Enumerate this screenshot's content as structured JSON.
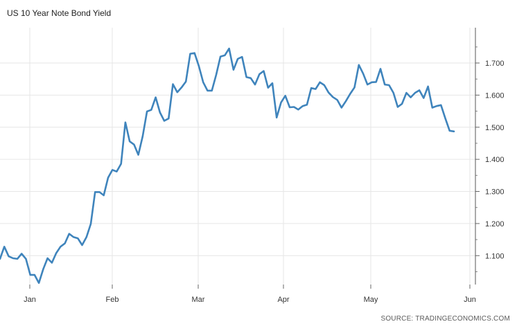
{
  "chart_data": {
    "type": "line",
    "title": "US 10 Year Note Bond Yield",
    "source": "SOURCE: TRADINGECONOMICS.COM",
    "x_tick_labels": [
      "Jan",
      "Feb",
      "Mar",
      "Apr",
      "May",
      "Jun"
    ],
    "y_tick_labels": [
      "1.100",
      "1.200",
      "1.300",
      "1.400",
      "1.500",
      "1.600",
      "1.700"
    ],
    "ylim": [
      1.01,
      1.81
    ],
    "y_axis_side": "right",
    "grid": true,
    "line_color": "#3f84bc",
    "series": [
      {
        "values": [
          1.09,
          1.128,
          1.098,
          1.092,
          1.09,
          1.106,
          1.09,
          1.04,
          1.04,
          1.015,
          1.058,
          1.092,
          1.078,
          1.108,
          1.128,
          1.138,
          1.168,
          1.158,
          1.154,
          1.133,
          1.158,
          1.199,
          1.298,
          1.298,
          1.288,
          1.343,
          1.367,
          1.362,
          1.386,
          1.515,
          1.456,
          1.446,
          1.414,
          1.472,
          1.549,
          1.554,
          1.593,
          1.546,
          1.52,
          1.527,
          1.634,
          1.609,
          1.624,
          1.642,
          1.729,
          1.731,
          1.69,
          1.64,
          1.614,
          1.614,
          1.663,
          1.72,
          1.724,
          1.745,
          1.679,
          1.713,
          1.719,
          1.656,
          1.653,
          1.633,
          1.665,
          1.675,
          1.623,
          1.637,
          1.53,
          1.577,
          1.598,
          1.562,
          1.563,
          1.555,
          1.566,
          1.57,
          1.622,
          1.619,
          1.64,
          1.631,
          1.608,
          1.594,
          1.585,
          1.561,
          1.581,
          1.604,
          1.624,
          1.694,
          1.667,
          1.633,
          1.64,
          1.641,
          1.682,
          1.633,
          1.631,
          1.607,
          1.563,
          1.573,
          1.607,
          1.593,
          1.607,
          1.615,
          1.591,
          1.627,
          1.561,
          1.566,
          1.569,
          1.528,
          1.489,
          1.487
        ]
      }
    ]
  }
}
